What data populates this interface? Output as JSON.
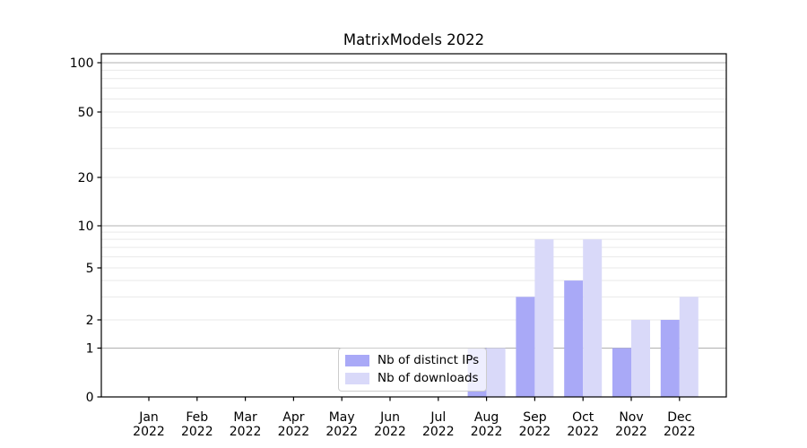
{
  "chart_data": {
    "type": "bar",
    "title": "MatrixModels 2022",
    "categories": [
      "Jan 2022",
      "Feb 2022",
      "Mar 2022",
      "Apr 2022",
      "May 2022",
      "Jun 2022",
      "Jul 2022",
      "Aug 2022",
      "Sep 2022",
      "Oct 2022",
      "Nov 2022",
      "Dec 2022"
    ],
    "series": [
      {
        "name": "Nb of distinct IPs",
        "color": "#a9a9f7",
        "values": [
          0,
          0,
          0,
          0,
          0,
          0,
          0,
          1,
          3,
          4,
          1,
          2
        ]
      },
      {
        "name": "Nb of downloads",
        "color": "#d9d9f9",
        "values": [
          0,
          0,
          0,
          0,
          0,
          0,
          0,
          1,
          8,
          8,
          2,
          3
        ]
      }
    ],
    "xlabel": "",
    "ylabel": "",
    "yscale": "asinh",
    "y_ticks": [
      0,
      1,
      2,
      5,
      10,
      20,
      50,
      100
    ],
    "ylim": [
      0,
      115
    ],
    "grid": {
      "orientation": "horizontal",
      "major_at": [
        1,
        10,
        100
      ],
      "minor_at": [
        2,
        3,
        4,
        5,
        6,
        7,
        8,
        9,
        20,
        30,
        40,
        50,
        60,
        70,
        80,
        90
      ]
    },
    "legend": {
      "position": "lower center",
      "items": [
        "Nb of distinct IPs",
        "Nb of downloads"
      ]
    }
  },
  "colors": {
    "axis": "#000000",
    "grid_major": "#b0b0b0",
    "grid_minor": "#e9e9e9",
    "text": "#000000",
    "legend_border": "#cccccc"
  }
}
